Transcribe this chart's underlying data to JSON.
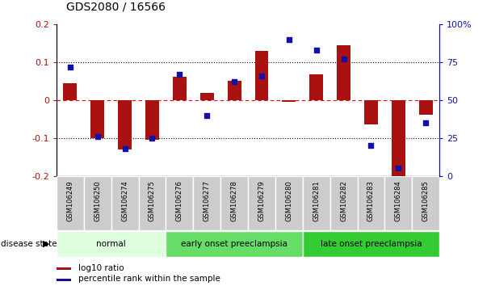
{
  "title": "GDS2080 / 16566",
  "samples": [
    "GSM106249",
    "GSM106250",
    "GSM106274",
    "GSM106275",
    "GSM106276",
    "GSM106277",
    "GSM106278",
    "GSM106279",
    "GSM106280",
    "GSM106281",
    "GSM106282",
    "GSM106283",
    "GSM106284",
    "GSM106285"
  ],
  "log10_ratio": [
    0.045,
    -0.1,
    -0.13,
    -0.105,
    0.062,
    0.02,
    0.05,
    0.13,
    -0.005,
    0.068,
    0.145,
    -0.065,
    -0.205,
    -0.038
  ],
  "percentile_rank": [
    72,
    26,
    18,
    25,
    67,
    40,
    62,
    66,
    90,
    83,
    77,
    20,
    5,
    35
  ],
  "ylim_left": [
    -0.2,
    0.2
  ],
  "ylim_right": [
    0,
    100
  ],
  "yticks_left": [
    -0.2,
    -0.1,
    0.0,
    0.1,
    0.2
  ],
  "yticks_right": [
    0,
    25,
    50,
    75,
    100
  ],
  "ytick_labels_left": [
    "-0.2",
    "-0.1",
    "0",
    "0.1",
    "0.2"
  ],
  "ytick_labels_right": [
    "0",
    "25",
    "50",
    "75",
    "100%"
  ],
  "bar_color": "#aa1111",
  "dot_color": "#1111aa",
  "bar_width": 0.5,
  "groups": [
    {
      "label": "normal",
      "start": 0,
      "end": 3,
      "color": "#ddffdd"
    },
    {
      "label": "early onset preeclampsia",
      "start": 4,
      "end": 8,
      "color": "#66dd66"
    },
    {
      "label": "late onset preeclampsia",
      "start": 9,
      "end": 13,
      "color": "#33cc33"
    }
  ],
  "disease_state_label": "disease state",
  "legend": [
    {
      "label": "log10 ratio",
      "color": "#aa1111"
    },
    {
      "label": "percentile rank within the sample",
      "color": "#1111aa"
    }
  ],
  "bg_color": "#ffffff",
  "plot_bg_color": "#ffffff",
  "sample_label_bg": "#cccccc",
  "title_fontsize": 10,
  "tick_fontsize": 8,
  "sample_fontsize": 6,
  "group_fontsize": 7.5,
  "legend_fontsize": 7.5
}
